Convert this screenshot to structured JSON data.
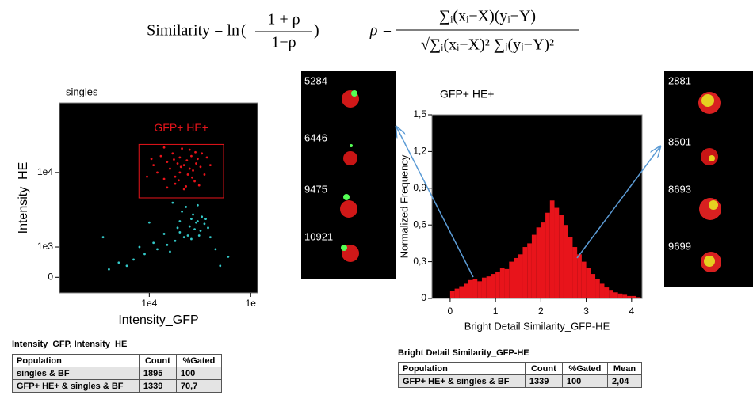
{
  "formula": {
    "lhs": "Similarity = ln",
    "frac_num": "1 + ρ",
    "frac_den": "1−ρ",
    "rho_lhs": "ρ =",
    "rho_num": "∑ᵢ(xᵢ−X)(yᵢ−Y)",
    "rho_den": "√∑ᵢ(xᵢ−X)² ∑ⱼ(yⱼ−Y)²"
  },
  "chart_data": [
    {
      "type": "scatter",
      "title": "singles",
      "x_label": "Intensity_GFP",
      "y_label": "Intensity_HE",
      "xscale": "log",
      "yscale": "logicle",
      "background": "#000000",
      "xlim": [
        1300,
        117000
      ],
      "ylim": [
        -300,
        53000
      ],
      "xticks": [
        {
          "value": 10000,
          "label": "1e4"
        },
        {
          "value": 100000,
          "label": "1e"
        }
      ],
      "yticks": [
        0,
        {
          "value": 1000,
          "label": "1e3"
        },
        {
          "value": 10000,
          "label": "1e4"
        }
      ],
      "gate": {
        "label": "GFP+ HE+",
        "color": "#e8141b",
        "x": [
          7900,
          54000
        ],
        "y": [
          5150,
          19900
        ]
      },
      "series": [
        {
          "color": "#33c8c8",
          "x": [
            20000,
            25000,
            30000,
            22000,
            28000,
            35000,
            18000,
            15000,
            12000,
            26000,
            32000,
            24000,
            9000,
            7000,
            5000,
            40000,
            45000,
            60000,
            21000,
            27000,
            33000,
            19000,
            14000,
            11000,
            29000,
            8000,
            6000,
            16000,
            38000,
            23000,
            17000,
            30000,
            4000,
            3500,
            50000,
            10000,
            26000,
            31000,
            36000,
            20000
          ],
          "y": [
            1800,
            2200,
            2600,
            1500,
            2000,
            2400,
            1300,
            1100,
            900,
            2800,
            1900,
            1600,
            700,
            500,
            400,
            1500,
            900,
            600,
            3500,
            3200,
            3000,
            2100,
            1700,
            1200,
            2500,
            1000,
            300,
            800,
            2100,
            4000,
            4500,
            4200,
            200,
            1500,
            300,
            2500,
            1400,
            1600,
            2800,
            2600
          ]
        },
        {
          "color": "#e8141b",
          "x": [
            20000,
            22000,
            18000,
            25000,
            15000,
            28000,
            12000,
            30000,
            17000,
            23000,
            26000,
            19000,
            14000,
            32000,
            11000,
            35000,
            21000,
            24000,
            16000,
            29000,
            13000,
            27000,
            20000,
            33000,
            9500,
            40000,
            22000,
            18000,
            25000,
            15000,
            31000,
            20500,
            10500,
            37000,
            26500,
            14000,
            23500,
            28500,
            19500,
            17500
          ],
          "y": [
            10000,
            12000,
            9000,
            11000,
            13000,
            8000,
            10000,
            14000,
            16000,
            7000,
            15000,
            12500,
            8500,
            11500,
            12000,
            9500,
            18000,
            9500,
            11000,
            12500,
            15000,
            10500,
            14500,
            16000,
            9000,
            12000,
            6500,
            7500,
            17500,
            6800,
            7200,
            11500,
            14000,
            14500,
            8800,
            18500,
            13500,
            16500,
            8200,
            13800
          ]
        }
      ]
    },
    {
      "type": "histogram",
      "title": "GFP+ HE+",
      "x_label": "Bright Detail Similarity_GFP-HE",
      "y_label": "Normalized Frequency",
      "color": "#e8141b",
      "background": "#000000",
      "xlim": [
        -0.4,
        4.23
      ],
      "ylim": [
        0,
        1.5
      ],
      "xticks": [
        0,
        1,
        2,
        3,
        4
      ],
      "yticks": [
        0,
        {
          "value": 0.3,
          "label": "0,3"
        },
        {
          "value": 0.6,
          "label": "0,6"
        },
        {
          "value": 0.9,
          "label": "0,9"
        },
        {
          "value": 1.2,
          "label": "1,2"
        },
        {
          "value": 1.5,
          "label": "1,5"
        }
      ],
      "bins": [
        0,
        0.1,
        0.2,
        0.3,
        0.4,
        0.5,
        0.6,
        0.7,
        0.8,
        0.9,
        1,
        1.1,
        1.2,
        1.3,
        1.4,
        1.5,
        1.6,
        1.7,
        1.8,
        1.9,
        2,
        2.1,
        2.2,
        2.3,
        2.4,
        2.5,
        2.6,
        2.7,
        2.8,
        2.9,
        3,
        3.1,
        3.2,
        3.3,
        3.4,
        3.5,
        3.6,
        3.7,
        3.8,
        3.9,
        4,
        4.1,
        4.2
      ],
      "values": [
        0.06,
        0.08,
        0.1,
        0.12,
        0.15,
        0.16,
        0.14,
        0.17,
        0.18,
        0.2,
        0.22,
        0.25,
        0.24,
        0.3,
        0.33,
        0.36,
        0.42,
        0.45,
        0.52,
        0.58,
        0.62,
        0.7,
        0.8,
        0.74,
        0.68,
        0.6,
        0.5,
        0.42,
        0.36,
        0.3,
        0.25,
        0.2,
        0.16,
        0.12,
        0.09,
        0.07,
        0.05,
        0.04,
        0.03,
        0.02,
        0.02,
        0.01
      ]
    }
  ],
  "images_left": [
    "5284",
    "6446",
    "9475",
    "10921"
  ],
  "images_right": [
    "2881",
    "8501",
    "8693",
    "9699"
  ],
  "table1": {
    "title": "Intensity_GFP, Intensity_HE",
    "header": [
      "Population",
      "Count",
      "%Gated"
    ],
    "rows": [
      [
        "singles & BF",
        "1895",
        "100"
      ],
      [
        "GFP+ HE+ & singles & BF",
        "1339",
        "70,7"
      ]
    ]
  },
  "table2": {
    "title": "Bright Detail Similarity_GFP-HE",
    "header": [
      "Population",
      "Count",
      "%Gated",
      "Mean"
    ],
    "rows": [
      [
        "GFP+ HE+ & singles & BF",
        "1339",
        "100",
        "2,04"
      ]
    ]
  }
}
